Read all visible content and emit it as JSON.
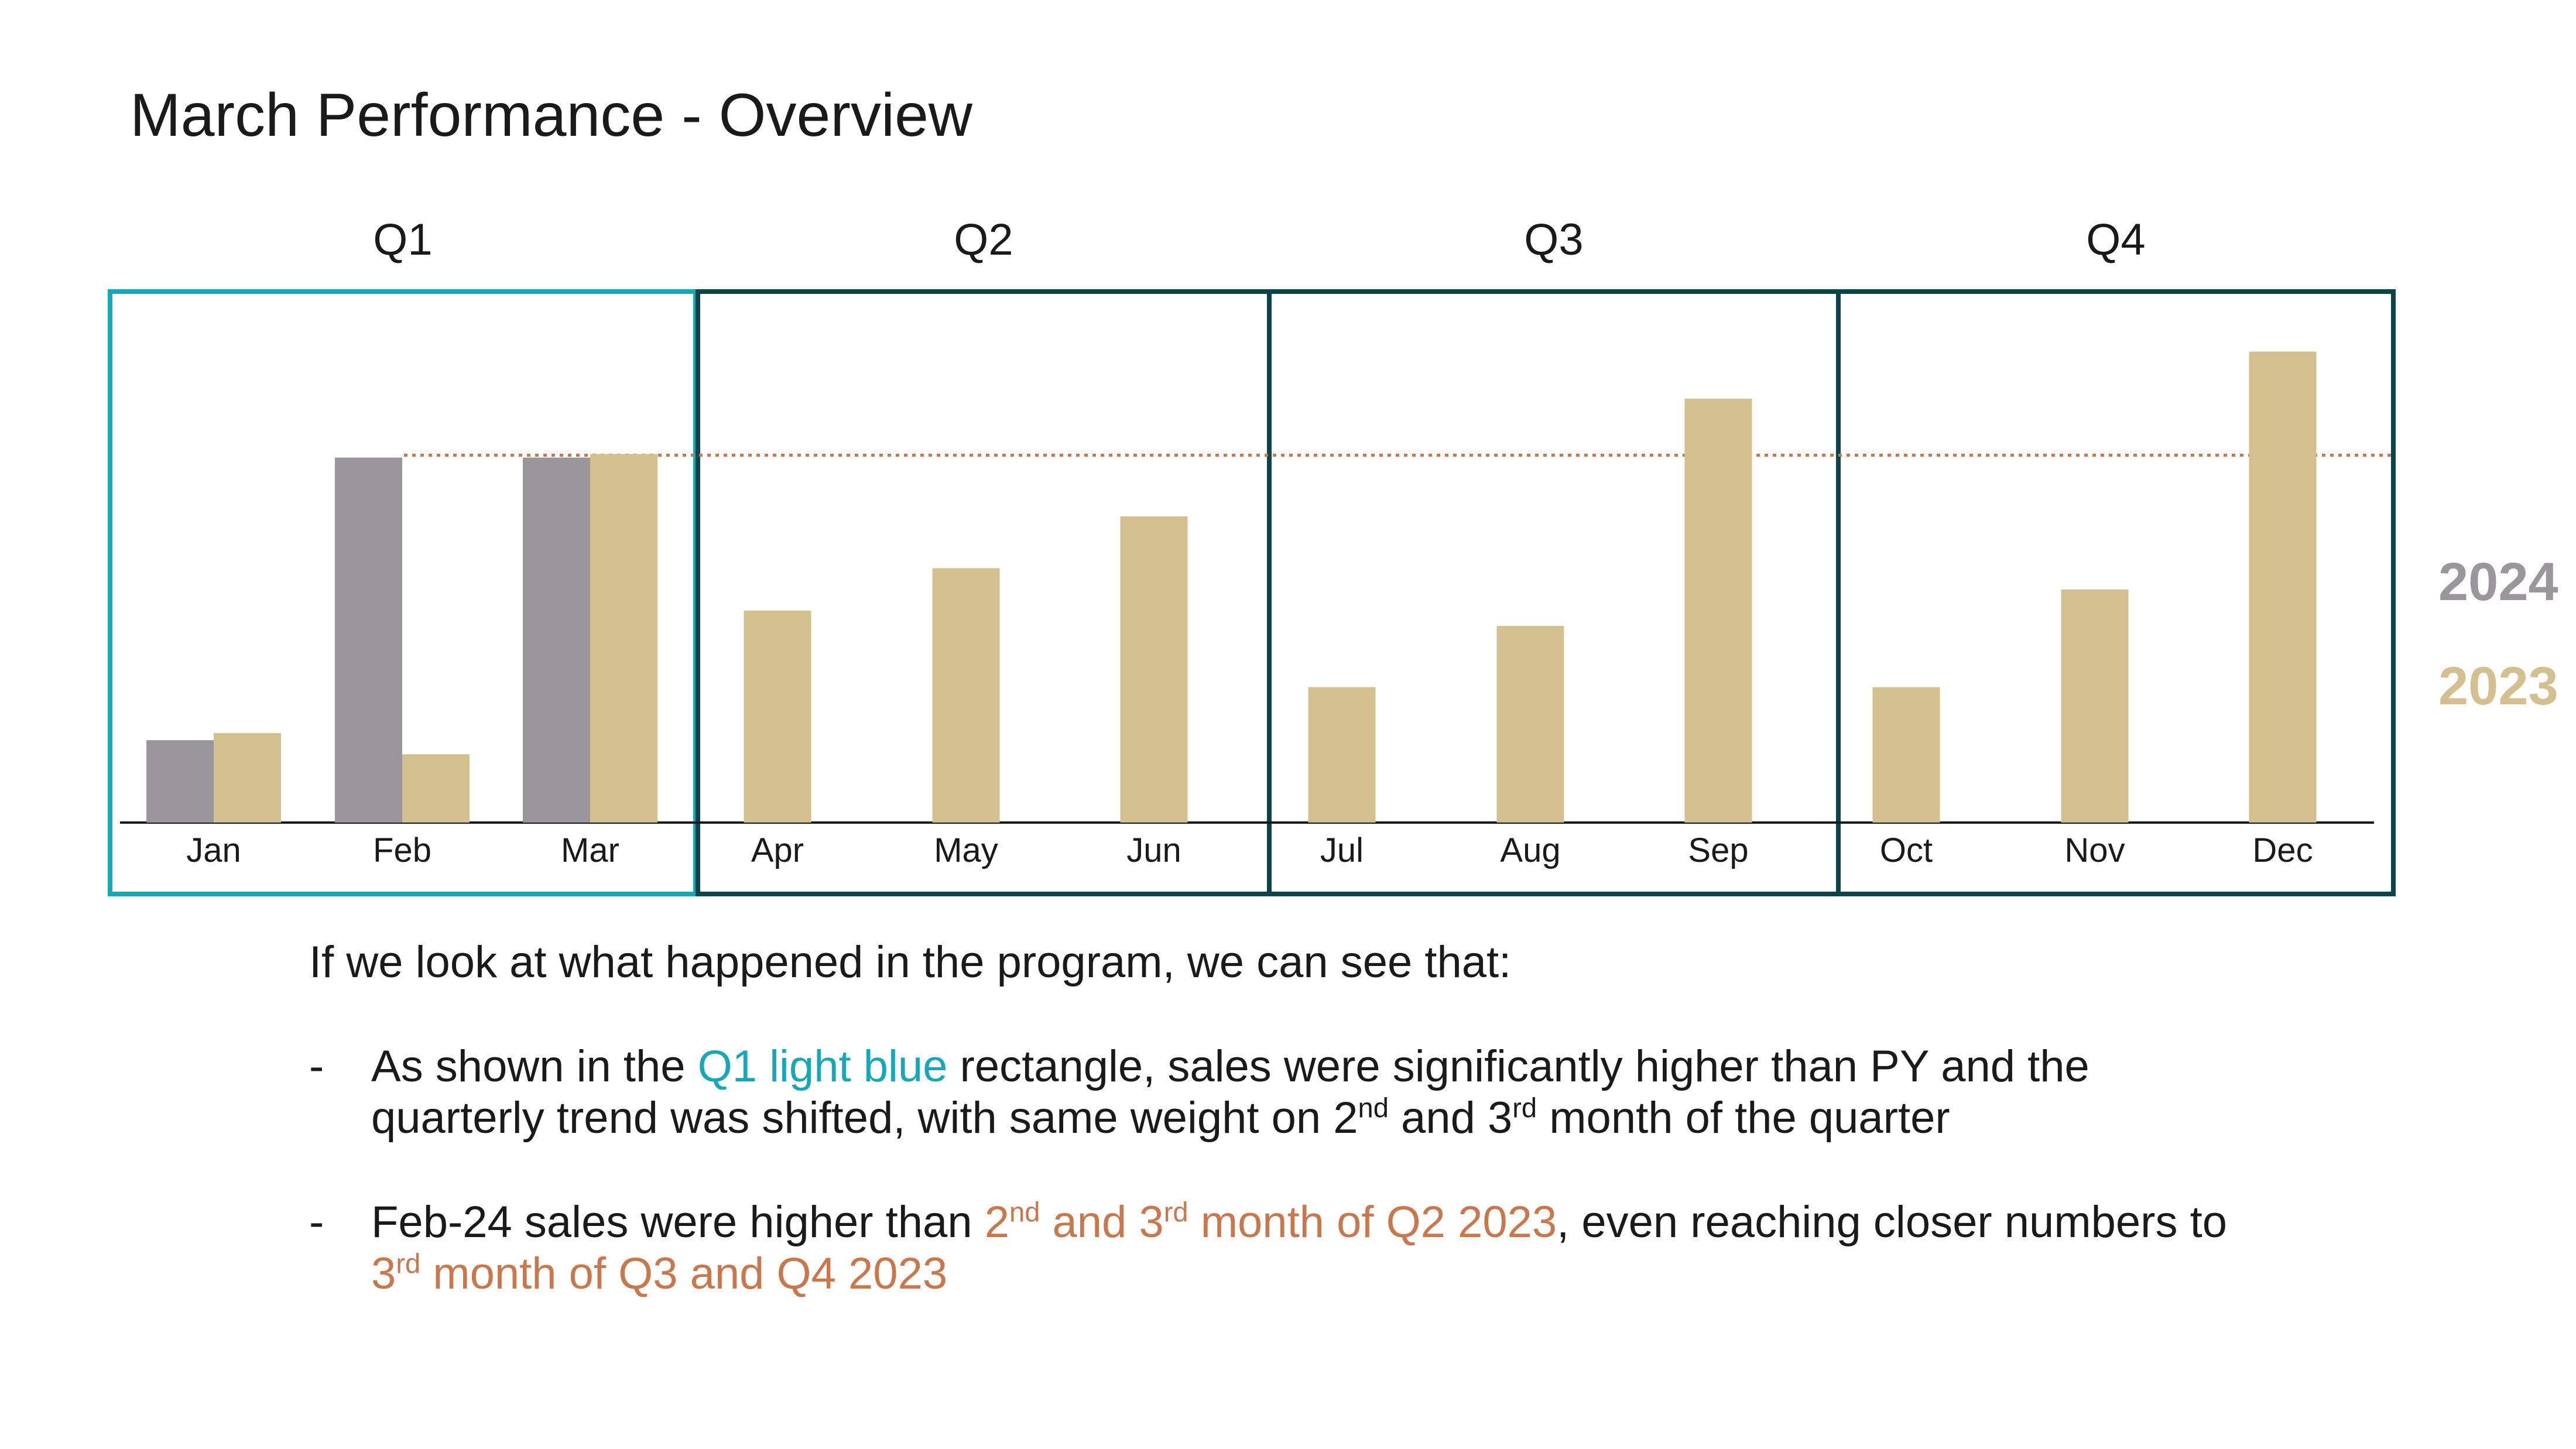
{
  "title": "March Performance - Overview",
  "chart_data": {
    "type": "bar",
    "categories": [
      "Jan",
      "Feb",
      "Mar",
      "Apr",
      "May",
      "Jun",
      "Jul",
      "Aug",
      "Sep",
      "Oct",
      "Nov",
      "Dec"
    ],
    "series": [
      {
        "name": "2024",
        "color": "#9b969c",
        "values": [
          7,
          31,
          31,
          null,
          null,
          null,
          null,
          null,
          null,
          null,
          null,
          null
        ]
      },
      {
        "name": "2023",
        "color": "#d4bf8f",
        "values": [
          7.6,
          5.8,
          31.3,
          18,
          21.6,
          26,
          11.5,
          16.7,
          36,
          11.5,
          19.8,
          40
        ]
      }
    ],
    "ylim": [
      0,
      45
    ],
    "reference_line": {
      "value": 31.2,
      "color": "#c9784e"
    },
    "quarters": [
      {
        "label": "Q1",
        "color": "#17a7b9"
      },
      {
        "label": "Q2",
        "color": "#0d4449"
      },
      {
        "label": "Q3",
        "color": "#0d4449"
      },
      {
        "label": "Q4",
        "color": "#0d4449"
      }
    ],
    "legend_position": "right"
  },
  "legend": {
    "items": [
      {
        "label": "2024",
        "color": "#9b969c"
      },
      {
        "label": "2023",
        "color": "#d4bf8f"
      }
    ]
  },
  "commentary": {
    "intro": "If we look at what happened in the program, we can see that:",
    "bullets": [
      {
        "dash": "-",
        "line1_a": "As shown in the ",
        "line1_hl": "Q1 light blue",
        "line1_b": " rectangle, sales were significantly higher than PY and the",
        "line2_a": "quarterly trend was shifted, with same weight on 2",
        "sup1": "nd",
        "line2_b": " and 3",
        "sup2": "rd",
        "line2_c": " month of the quarter"
      },
      {
        "dash": "-",
        "line1_a": "Feb-24 sales were higher than ",
        "hl_a": "2",
        "sup1": "nd",
        "hl_b": " and 3",
        "sup2": "rd",
        "hl_c": " month of Q2 2023",
        "line1_b": ", even reaching closer numbers to",
        "line2_a": "3",
        "sup3": "rd",
        "line2_b": " month of Q3 and Q4 2023"
      }
    ]
  }
}
